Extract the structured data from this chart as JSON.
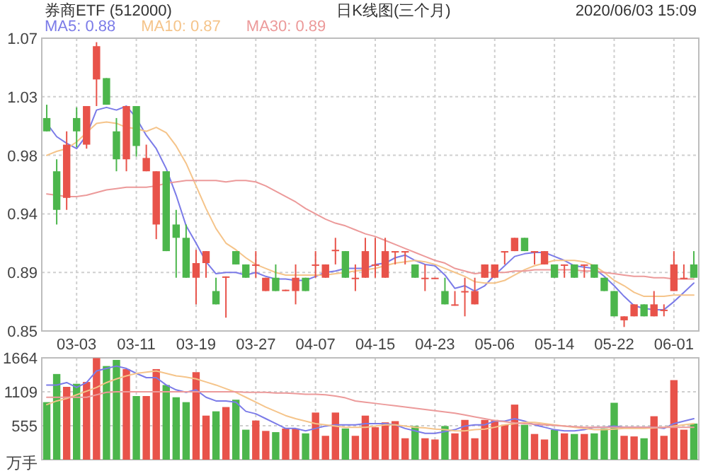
{
  "chart_data": [
    {
      "type": "candlestick",
      "title": "券商ETF (512000)",
      "subtitle": "日K线图(三个月)",
      "annotations": [
        "2020/06/03 15:09"
      ],
      "categories": [
        null,
        null,
        null,
        "03-03",
        null,
        null,
        null,
        null,
        null,
        "03-11",
        null,
        null,
        null,
        null,
        null,
        "03-19",
        null,
        null,
        null,
        null,
        null,
        "03-27",
        null,
        null,
        null,
        null,
        null,
        "04-07",
        null,
        null,
        null,
        null,
        null,
        "04-15",
        null,
        null,
        null,
        null,
        null,
        "04-23",
        null,
        null,
        null,
        null,
        null,
        "05-06",
        null,
        null,
        null,
        null,
        null,
        "05-14",
        null,
        null,
        null,
        null,
        null,
        "05-22",
        null,
        null,
        null,
        null,
        null,
        "06-01",
        null,
        null
      ],
      "ohlc": [
        [
          1.01,
          1.02,
          1.0,
          1.0
        ],
        [
          0.97,
          0.979,
          0.93,
          0.941
        ],
        [
          0.95,
          1.0,
          0.941,
          0.99
        ],
        [
          1.01,
          1.018,
          0.988,
          1.0
        ],
        [
          0.99,
          1.019,
          0.987,
          1.019
        ],
        [
          1.039,
          1.067,
          1.019,
          1.064
        ],
        [
          1.04,
          1.04,
          1.02,
          1.02
        ],
        [
          1.0,
          1.01,
          0.97,
          0.979
        ],
        [
          0.979,
          1.019,
          0.97,
          1.019
        ],
        [
          1.019,
          1.019,
          0.981,
          0.989
        ],
        [
          0.97,
          0.99,
          0.97,
          0.98
        ],
        [
          0.93,
          0.97,
          0.919,
          0.97
        ],
        [
          0.97,
          0.97,
          0.91,
          0.91
        ],
        [
          0.93,
          0.941,
          0.89,
          0.92
        ],
        [
          0.92,
          0.93,
          0.89,
          0.89
        ],
        [
          0.89,
          0.911,
          0.87,
          0.901
        ],
        [
          0.901,
          0.91,
          0.89,
          0.91
        ],
        [
          0.88,
          0.89,
          0.87,
          0.87
        ],
        [
          0.89,
          0.891,
          0.86,
          0.891
        ],
        [
          0.91,
          0.91,
          0.9,
          0.9
        ],
        [
          0.9,
          0.9,
          0.89,
          0.89
        ],
        [
          0.899,
          0.91,
          0.89,
          0.9
        ],
        [
          0.88,
          0.89,
          0.88,
          0.89
        ],
        [
          0.89,
          0.9,
          0.88,
          0.88
        ],
        [
          0.88,
          0.881,
          0.88,
          0.881
        ],
        [
          0.88,
          0.9,
          0.87,
          0.89
        ],
        [
          0.89,
          0.89,
          0.88,
          0.88
        ],
        [
          0.899,
          0.91,
          0.89,
          0.9
        ],
        [
          0.89,
          0.9,
          0.89,
          0.9
        ],
        [
          0.91,
          0.92,
          0.9,
          0.911
        ],
        [
          0.91,
          0.91,
          0.89,
          0.89
        ],
        [
          0.889,
          0.9,
          0.88,
          0.89
        ],
        [
          0.89,
          0.92,
          0.89,
          0.91
        ],
        [
          0.899,
          0.92,
          0.89,
          0.9
        ],
        [
          0.89,
          0.92,
          0.89,
          0.91
        ],
        [
          0.909,
          0.91,
          0.9,
          0.91
        ],
        [
          0.909,
          0.91,
          0.9,
          0.91
        ],
        [
          0.9,
          0.9,
          0.89,
          0.89
        ],
        [
          0.889,
          0.9,
          0.88,
          0.89
        ],
        [
          0.889,
          0.89,
          0.889,
          0.89
        ],
        [
          0.88,
          0.89,
          0.87,
          0.87
        ],
        [
          0.869,
          0.88,
          0.869,
          0.87
        ],
        [
          0.879,
          0.89,
          0.861,
          0.88
        ],
        [
          0.87,
          0.89,
          0.87,
          0.88
        ],
        [
          0.89,
          0.9,
          0.89,
          0.9
        ],
        [
          0.89,
          0.9,
          0.89,
          0.9
        ],
        [
          0.909,
          0.91,
          0.9,
          0.91
        ],
        [
          0.91,
          0.92,
          0.91,
          0.92
        ],
        [
          0.92,
          0.92,
          0.91,
          0.91
        ],
        [
          0.909,
          0.91,
          0.9,
          0.91
        ],
        [
          0.9,
          0.91,
          0.9,
          0.91
        ],
        [
          0.9,
          0.9,
          0.89,
          0.89
        ],
        [
          0.899,
          0.9,
          0.89,
          0.9
        ],
        [
          0.9,
          0.9,
          0.89,
          0.89
        ],
        [
          0.899,
          0.9,
          0.89,
          0.9
        ],
        [
          0.9,
          0.9,
          0.89,
          0.89
        ],
        [
          0.89,
          0.89,
          0.88,
          0.88
        ],
        [
          0.88,
          0.88,
          0.861,
          0.861
        ],
        [
          0.858,
          0.861,
          0.853,
          0.861
        ],
        [
          0.861,
          0.87,
          0.861,
          0.87
        ],
        [
          0.87,
          0.87,
          0.861,
          0.861
        ],
        [
          0.861,
          0.88,
          0.861,
          0.87
        ],
        [
          0.865,
          0.87,
          0.861,
          0.866
        ],
        [
          0.88,
          0.91,
          0.88,
          0.9
        ],
        [
          0.889,
          0.9,
          0.889,
          0.89
        ],
        [
          0.9,
          0.91,
          0.89,
          0.89
        ]
      ],
      "colors": [
        "#4cb64c",
        "#4cb64c",
        "#e8534a",
        "#4cb64c",
        "#e8534a",
        "#e8534a",
        "#4cb64c",
        "#4cb64c",
        "#e8534a",
        "#4cb64c",
        "#e8534a",
        "#e8534a",
        "#4cb64c",
        "#4cb64c",
        "#4cb64c",
        "#e8534a",
        "#e8534a",
        "#4cb64c",
        "#e8534a",
        "#4cb64c",
        "#4cb64c",
        "#e8534a",
        "#e8534a",
        "#4cb64c",
        "#e8534a",
        "#e8534a",
        "#4cb64c",
        "#e8534a",
        "#e8534a",
        "#e8534a",
        "#4cb64c",
        "#e8534a",
        "#e8534a",
        "#e8534a",
        "#e8534a",
        "#e8534a",
        "#e8534a",
        "#4cb64c",
        "#e8534a",
        "#e8534a",
        "#4cb64c",
        "#e8534a",
        "#e8534a",
        "#e8534a",
        "#e8534a",
        "#e8534a",
        "#e8534a",
        "#e8534a",
        "#4cb64c",
        "#e8534a",
        "#e8534a",
        "#4cb64c",
        "#e8534a",
        "#4cb64c",
        "#e8534a",
        "#4cb64c",
        "#4cb64c",
        "#4cb64c",
        "#e8534a",
        "#e8534a",
        "#4cb64c",
        "#e8534a",
        "#e8534a",
        "#e8534a",
        "#e8534a",
        "#4cb64c"
      ],
      "series": [
        {
          "name": "MA5: 0.88",
          "type": "line",
          "color": "#7b7be8",
          "values": [
            1.006,
            0.996,
            0.991,
            0.987,
            0.997,
            1.016,
            1.018,
            1.016,
            1.019,
            1.01,
            0.997,
            0.987,
            0.972,
            0.952,
            0.929,
            0.916,
            0.902,
            0.893,
            0.894,
            0.894,
            0.892,
            0.894,
            0.891,
            0.889,
            0.889,
            0.888,
            0.888,
            0.891,
            0.894,
            0.895,
            0.897,
            0.897,
            0.897,
            0.9,
            0.901,
            0.905,
            0.907,
            0.903,
            0.9,
            0.899,
            0.892,
            0.882,
            0.884,
            0.88,
            0.884,
            0.892,
            0.899,
            0.906,
            0.908,
            0.909,
            0.909,
            0.906,
            0.903,
            0.899,
            0.898,
            0.897,
            0.891,
            0.884,
            0.876,
            0.869,
            0.867,
            0.866,
            0.866,
            0.872,
            0.879,
            0.886
          ]
        },
        {
          "name": "MA10: 0.87",
          "type": "line",
          "color": "#f5c48a",
          "values": [
            0.982,
            0.985,
            0.987,
            0.992,
            0.999,
            1.006,
            1.007,
            1.006,
            1.003,
            1.002,
            1.0,
            1.003,
            0.999,
            0.989,
            0.976,
            0.959,
            0.942,
            0.927,
            0.916,
            0.911,
            0.905,
            0.9,
            0.897,
            0.894,
            0.892,
            0.892,
            0.892,
            0.892,
            0.892,
            0.893,
            0.894,
            0.895,
            0.896,
            0.897,
            0.899,
            0.901,
            0.902,
            0.903,
            0.902,
            0.9,
            0.897,
            0.894,
            0.891,
            0.887,
            0.886,
            0.886,
            0.888,
            0.892,
            0.896,
            0.899,
            0.901,
            0.903,
            0.903,
            0.903,
            0.902,
            0.899,
            0.894,
            0.888,
            0.884,
            0.879,
            0.876,
            0.876,
            0.876,
            0.877,
            0.877,
            0.877
          ]
        },
        {
          "name": "MA30: 0.89",
          "type": "line",
          "color": "#ec9a9a",
          "values": [
            0.953,
            0.952,
            0.951,
            0.951,
            0.952,
            0.954,
            0.956,
            0.957,
            0.958,
            0.958,
            0.958,
            0.959,
            0.961,
            0.962,
            0.963,
            0.963,
            0.963,
            0.963,
            0.962,
            0.963,
            0.963,
            0.962,
            0.959,
            0.955,
            0.951,
            0.947,
            0.942,
            0.938,
            0.934,
            0.931,
            0.929,
            0.926,
            0.923,
            0.921,
            0.918,
            0.915,
            0.912,
            0.909,
            0.906,
            0.903,
            0.901,
            0.897,
            0.895,
            0.893,
            0.894,
            0.894,
            0.894,
            0.895,
            0.895,
            0.896,
            0.896,
            0.896,
            0.896,
            0.896,
            0.895,
            0.895,
            0.894,
            0.893,
            0.892,
            0.891,
            0.891,
            0.89,
            0.89,
            0.889,
            0.889,
            0.889
          ]
        }
      ],
      "ylim": [
        0.85,
        1.07
      ],
      "yticks": [
        0.85,
        {
          "value": 0.894,
          "label": "0.89"
        },
        {
          "value": 0.938,
          "label": "0.94"
        },
        {
          "value": 0.982,
          "label": "0.98"
        },
        {
          "value": 1.026,
          "label": "1.03"
        },
        1.07
      ],
      "grid": true,
      "legend": "top left"
    },
    {
      "type": "bar",
      "ylabel": "万手",
      "tick_labels": "y",
      "categories": [
        null,
        null,
        null,
        null,
        null,
        null,
        null,
        null,
        null,
        null,
        null,
        null,
        null,
        null,
        null,
        null,
        null,
        null,
        null,
        null,
        null,
        null,
        null,
        null,
        null,
        null,
        null,
        null,
        null,
        null,
        null,
        null,
        null,
        null,
        null,
        null,
        null,
        null,
        null,
        null,
        null,
        null,
        null,
        null,
        null,
        null,
        null,
        null,
        null,
        null,
        null,
        null,
        null,
        null,
        null,
        null,
        null,
        null,
        null,
        null,
        null,
        null,
        null,
        null,
        null,
        null
      ],
      "series": [
        {
          "type": "bar",
          "colors": [
            "#4cb64c",
            "#4cb64c",
            "#e8534a",
            "#4cb64c",
            "#e8534a",
            "#e8534a",
            "#4cb64c",
            "#4cb64c",
            "#e8534a",
            "#4cb64c",
            "#e8534a",
            "#e8534a",
            "#4cb64c",
            "#4cb64c",
            "#4cb64c",
            "#e8534a",
            "#e8534a",
            "#4cb64c",
            "#e8534a",
            "#4cb64c",
            "#4cb64c",
            "#e8534a",
            "#e8534a",
            "#4cb64c",
            "#e8534a",
            "#e8534a",
            "#4cb64c",
            "#e8534a",
            "#e8534a",
            "#e8534a",
            "#4cb64c",
            "#e8534a",
            "#e8534a",
            "#e8534a",
            "#e8534a",
            "#e8534a",
            "#e8534a",
            "#4cb64c",
            "#e8534a",
            "#e8534a",
            "#4cb64c",
            "#e8534a",
            "#e8534a",
            "#e8534a",
            "#e8534a",
            "#e8534a",
            "#e8534a",
            "#e8534a",
            "#4cb64c",
            "#e8534a",
            "#e8534a",
            "#4cb64c",
            "#e8534a",
            "#4cb64c",
            "#e8534a",
            "#4cb64c",
            "#4cb64c",
            "#4cb64c",
            "#e8534a",
            "#e8534a",
            "#4cb64c",
            "#e8534a",
            "#e8534a",
            "#e8534a",
            "#e8534a",
            "#4cb64c"
          ],
          "values": [
            940,
            1400,
            1190,
            1240,
            1270,
            1660,
            1530,
            1630,
            1480,
            1040,
            1040,
            1480,
            1220,
            1020,
            940,
            1430,
            720,
            790,
            860,
            980,
            490,
            640,
            470,
            450,
            510,
            510,
            430,
            770,
            390,
            770,
            510,
            390,
            720,
            530,
            610,
            630,
            350,
            550,
            350,
            330,
            550,
            430,
            650,
            350,
            650,
            650,
            570,
            900,
            570,
            420,
            330,
            490,
            430,
            420,
            420,
            430,
            510,
            930,
            390,
            380,
            350,
            710,
            390,
            1300,
            490,
            590
          ]
        },
        {
          "type": "line",
          "color": "#7b7be8",
          "values": [
            1220,
            1220,
            1260,
            1180,
            1260,
            1450,
            1490,
            1530,
            1490,
            1410,
            1340,
            1340,
            1220,
            1140,
            1100,
            1140,
            1020,
            960,
            960,
            940,
            790,
            750,
            670,
            590,
            510,
            510,
            470,
            510,
            550,
            570,
            570,
            570,
            590,
            590,
            590,
            570,
            510,
            470,
            430,
            430,
            460,
            490,
            550,
            570,
            570,
            630,
            630,
            670,
            630,
            570,
            530,
            490,
            470,
            470,
            490,
            530,
            530,
            550,
            530,
            530,
            530,
            530,
            510,
            590,
            630,
            670
          ]
        },
        {
          "type": "line",
          "color": "#f5c48a",
          "values": [
            900,
            960,
            1000,
            1060,
            1120,
            1180,
            1260,
            1320,
            1370,
            1410,
            1430,
            1450,
            1410,
            1370,
            1350,
            1320,
            1270,
            1220,
            1160,
            1100,
            1020,
            940,
            860,
            790,
            720,
            670,
            630,
            590,
            570,
            550,
            530,
            530,
            530,
            550,
            570,
            570,
            550,
            530,
            520,
            500,
            490,
            470,
            470,
            490,
            500,
            530,
            570,
            590,
            610,
            610,
            590,
            570,
            550,
            530,
            510,
            490,
            490,
            500,
            510,
            510,
            510,
            520,
            530,
            550,
            570,
            590
          ]
        },
        {
          "type": "line",
          "color": "#ec9a9a",
          "values": [
            1020,
            1020,
            1020,
            1020,
            1020,
            1060,
            1100,
            1110,
            1110,
            1110,
            1110,
            1110,
            1110,
            1110,
            1110,
            1110,
            1110,
            1110,
            1110,
            1110,
            1100,
            1100,
            1100,
            1090,
            1090,
            1080,
            1070,
            1070,
            1060,
            1040,
            1010,
            960,
            940,
            920,
            900,
            880,
            860,
            840,
            820,
            800,
            780,
            760,
            730,
            700,
            670,
            640,
            620,
            600,
            590,
            580,
            570,
            560,
            550,
            540,
            530,
            530,
            530,
            530,
            530,
            530,
            530,
            530,
            530,
            530,
            530,
            530
          ]
        }
      ],
      "ylim": [
        0,
        1664
      ],
      "yticks": [
        555,
        1109,
        1664
      ],
      "grid": true
    }
  ]
}
